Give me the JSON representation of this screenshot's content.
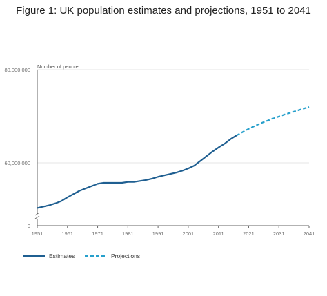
{
  "chart_data": {
    "type": "line",
    "title": "Figure 1: UK population estimates and projections, 1951 to 2041",
    "ylabel": "Number of people",
    "xlabel": "",
    "y_axis_break": true,
    "x_ticks": [
      "1951",
      "1961",
      "1971",
      "1981",
      "1991",
      "2001",
      "2011",
      "2021",
      "2031",
      "2041"
    ],
    "y_ticks": [
      {
        "value": 0,
        "label": "0"
      },
      {
        "value": 60000000,
        "label": "60,000,000"
      },
      {
        "value": 80000000,
        "label": "80,000,000"
      }
    ],
    "grid": true,
    "legend_position": "bottom-left",
    "series": [
      {
        "name": "Estimates",
        "color": "#1f5f91",
        "style": "solid",
        "x": [
          1951,
          1953,
          1955,
          1957,
          1959,
          1961,
          1963,
          1965,
          1967,
          1969,
          1971,
          1973,
          1975,
          1977,
          1979,
          1981,
          1983,
          1985,
          1987,
          1989,
          1991,
          1993,
          1995,
          1997,
          1999,
          2001,
          2003,
          2005,
          2007,
          2009,
          2011,
          2013,
          2015,
          2017
        ],
        "y": [
          50300000,
          50600000,
          50900000,
          51300000,
          51800000,
          52600000,
          53300000,
          54000000,
          54500000,
          55000000,
          55500000,
          55700000,
          55700000,
          55700000,
          55700000,
          55900000,
          55900000,
          56100000,
          56300000,
          56600000,
          57000000,
          57300000,
          57600000,
          57900000,
          58300000,
          58800000,
          59400000,
          60400000,
          61400000,
          62400000,
          63300000,
          64100000,
          65100000,
          65900000
        ]
      },
      {
        "name": "Projections",
        "color": "#27a0cc",
        "style": "dashed",
        "x": [
          2017,
          2021,
          2025,
          2029,
          2033,
          2037,
          2041
        ],
        "y": [
          65900000,
          67300000,
          68500000,
          69500000,
          70400000,
          71200000,
          72000000
        ]
      }
    ]
  }
}
